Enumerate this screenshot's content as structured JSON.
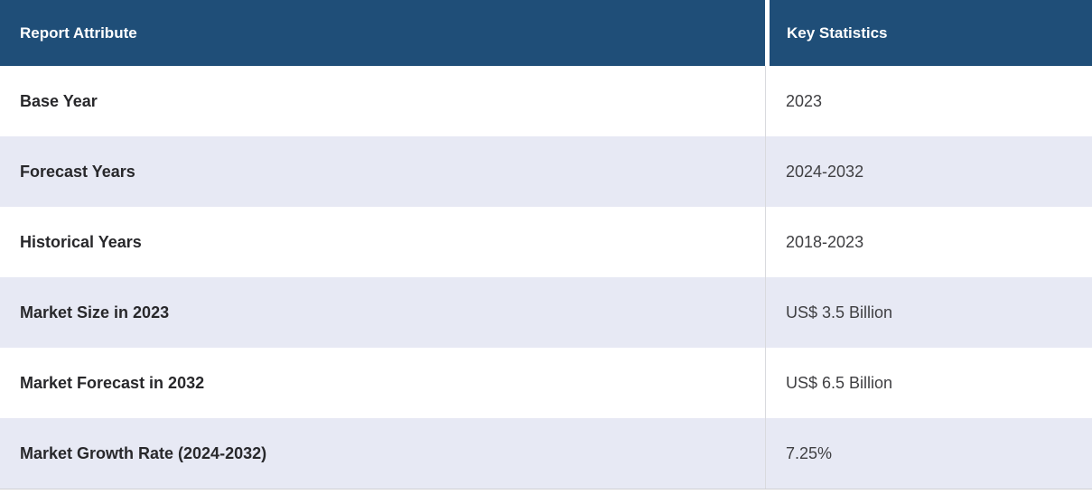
{
  "table": {
    "columns": [
      {
        "label": "Report Attribute"
      },
      {
        "label": "Key Statistics"
      }
    ],
    "rows": [
      {
        "attribute": "Base Year",
        "value": "2023"
      },
      {
        "attribute": "Forecast Years",
        "value": "2024-2032"
      },
      {
        "attribute": "Historical Years",
        "value": "2018-2023"
      },
      {
        "attribute": "Market Size in 2023",
        "value": "US$ 3.5 Billion"
      },
      {
        "attribute": "Market Forecast in 2032",
        "value": "US$ 6.5 Billion"
      },
      {
        "attribute": "Market Growth Rate (2024-2032)",
        "value": "7.25%"
      }
    ]
  },
  "colors": {
    "header_bg": "#1f4e78",
    "header_text": "#ffffff",
    "row_bg": "#ffffff",
    "row_alt_bg": "#e7e9f4",
    "attribute_text": "#28282b",
    "value_text": "#3f3f42",
    "column_divider": "#d9dade",
    "table_bottom_border": "#cfcfd2"
  }
}
